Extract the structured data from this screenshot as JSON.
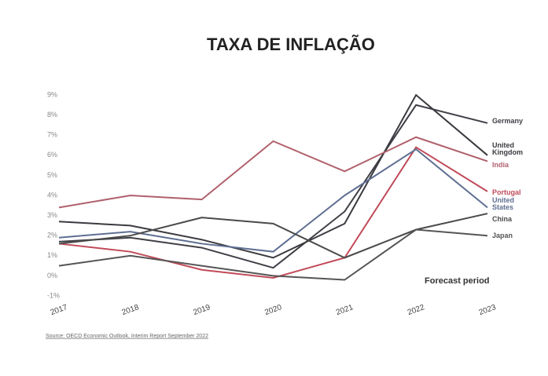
{
  "chart_data": {
    "type": "line",
    "title": "TAXA DE INFLAÇÃO",
    "categories": [
      "2017",
      "2018",
      "2019",
      "2020",
      "2021",
      "2022",
      "2023"
    ],
    "ylim": [
      -1,
      9
    ],
    "yticks": [
      {
        "value": -1,
        "label": "-1%"
      },
      {
        "value": 0,
        "label": "0%"
      },
      {
        "value": 1,
        "label": "1%"
      },
      {
        "value": 2,
        "label": "2%"
      },
      {
        "value": 3,
        "label": "3%"
      },
      {
        "value": 4,
        "label": "4%"
      },
      {
        "value": 5,
        "label": "5%"
      },
      {
        "value": 6,
        "label": "6%"
      },
      {
        "value": 7,
        "label": "7%"
      },
      {
        "value": 8,
        "label": "8%"
      },
      {
        "value": 9,
        "label": "9%"
      }
    ],
    "series": [
      {
        "name": "Germany",
        "color": "#3f3f46",
        "values": [
          1.7,
          1.9,
          1.4,
          0.4,
          3.2,
          8.5,
          7.6
        ]
      },
      {
        "name": "United Kingdom",
        "color": "#3a3a40",
        "values": [
          2.7,
          2.5,
          1.8,
          0.9,
          2.6,
          9.0,
          6.0
        ]
      },
      {
        "name": "India",
        "color": "#b0606c",
        "values": [
          3.4,
          4.0,
          3.8,
          6.7,
          5.2,
          6.9,
          5.7
        ]
      },
      {
        "name": "Portugal",
        "color": "#c04a58",
        "values": [
          1.6,
          1.2,
          0.3,
          -0.1,
          0.9,
          6.4,
          4.2
        ]
      },
      {
        "name": "United States",
        "color": "#5f6f92",
        "values": [
          1.9,
          2.2,
          1.6,
          1.2,
          4.0,
          6.3,
          3.4
        ]
      },
      {
        "name": "China",
        "color": "#4a4a4a",
        "values": [
          1.6,
          2.0,
          2.9,
          2.6,
          0.9,
          2.3,
          3.1
        ]
      },
      {
        "name": "Japan",
        "color": "#555555",
        "values": [
          0.5,
          1.0,
          0.5,
          0.0,
          -0.2,
          2.3,
          2.0
        ]
      }
    ],
    "annotation": "Forecast period",
    "source": "Source: OECD Economic Outlook, Interim Report September 2022"
  }
}
